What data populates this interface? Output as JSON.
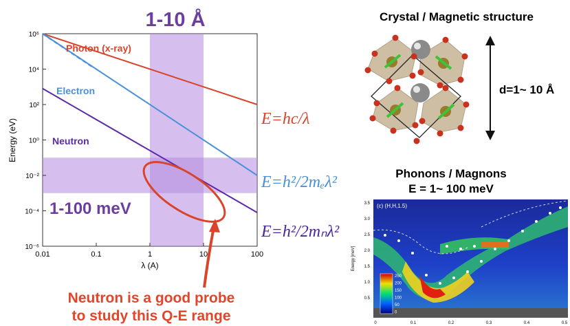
{
  "colors": {
    "photon": "#d9442b",
    "electron": "#4a90d9",
    "neutron": "#5a2aa8",
    "band": "#b58be0",
    "arrow": "#d9442b",
    "range_text": "#6b3fa0"
  },
  "header_range": "1-10 Å",
  "band_label": "1-100 meV",
  "chart_data": {
    "type": "line",
    "xlabel": "λ (A)",
    "ylabel": "Energy (eV)",
    "log_x": true,
    "log_y": true,
    "xlim": [
      0.01,
      100
    ],
    "ylim": [
      1e-06,
      1000000.0
    ],
    "x_ticks": [
      "0.01",
      "0.1",
      "1",
      "10",
      "100"
    ],
    "y_ticks": [
      "10⁻⁶",
      "10⁻⁴",
      "10⁻²",
      "10⁰",
      "10²",
      "10⁴",
      "10⁶"
    ],
    "series": [
      {
        "name": "Photon (x-ray)",
        "x": [
          0.01,
          100
        ],
        "y": [
          1000000,
          100
        ]
      },
      {
        "name": "Electron",
        "x": [
          0.01,
          100
        ],
        "y": [
          1000000,
          0.01
        ]
      },
      {
        "name": "Neutron",
        "x": [
          0.01,
          100
        ],
        "y": [
          800,
          8e-05
        ]
      }
    ],
    "highlight_x_range": [
      1,
      10
    ],
    "highlight_y_range": [
      0.001,
      0.1
    ]
  },
  "equations": {
    "photon": "E=hc/λ",
    "electron": "E=h²/2mₑλ²",
    "neutron": "E=h²/2mₙλ²"
  },
  "callout": [
    "Neutron is a good probe",
    "to study this Q-E range"
  ],
  "crystal": {
    "title": "Crystal / Magnetic structure",
    "d_label": "d=1~ 10 Å"
  },
  "phonons": {
    "title": "Phonons / Magnons",
    "subtitle": "E = 1~ 100 meV",
    "panel_label": "(c) (H,H,1.5)",
    "ylabel": "Energy [meV]",
    "y_ticks": [
      "3.5",
      "3.0",
      "2.5",
      "2.0",
      "1.5",
      "1.0",
      "0.5"
    ],
    "x_ticks": [
      "0",
      "0.1",
      "0.2",
      "0.3",
      "0.4",
      "0.5"
    ],
    "colorbar_ticks": [
      "250",
      "200",
      "150",
      "100",
      "50",
      "0"
    ]
  }
}
